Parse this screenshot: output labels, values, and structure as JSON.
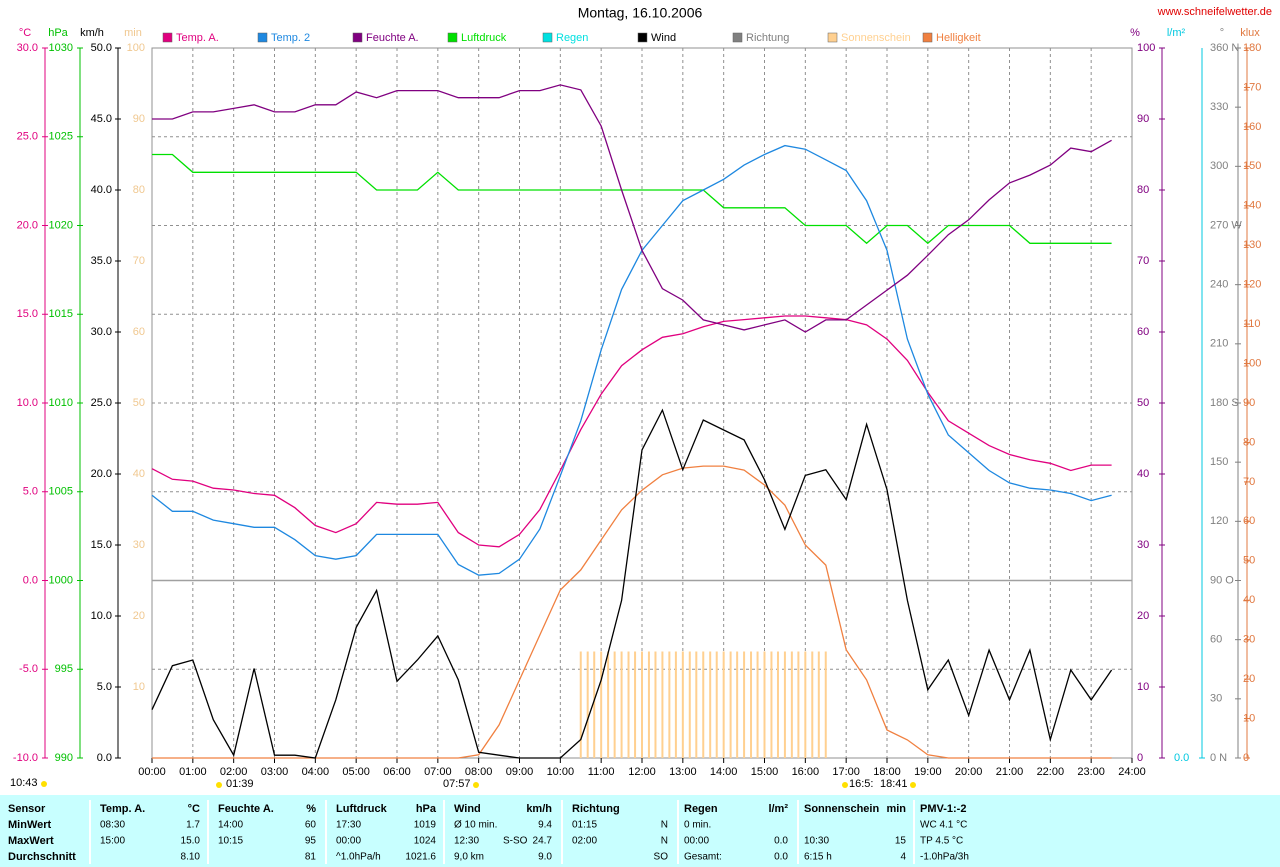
{
  "chart_data": {
    "type": "line",
    "title": "Montag, 16.10.2006",
    "source": "www.schneifelwetter.de",
    "x": [
      0,
      0.5,
      1,
      1.5,
      2,
      2.5,
      3,
      3.5,
      4,
      4.5,
      5,
      5.5,
      6,
      6.5,
      7,
      7.5,
      8,
      8.5,
      9,
      9.5,
      10,
      10.5,
      11,
      11.5,
      12,
      12.5,
      13,
      13.5,
      14,
      14.5,
      15,
      15.5,
      16,
      16.5,
      17,
      17.5,
      18,
      18.5,
      19,
      19.5,
      20,
      20.5,
      21,
      21.5,
      22,
      22.5,
      23,
      23.5
    ],
    "xlim": [
      0,
      24
    ],
    "xticks": [
      {
        "value": 0,
        "label": "00:00"
      },
      {
        "value": 1,
        "label": "01:00"
      },
      {
        "value": 2,
        "label": "02:00"
      },
      {
        "value": 3,
        "label": "03:00"
      },
      {
        "value": 4,
        "label": "04:00"
      },
      {
        "value": 5,
        "label": "05:00"
      },
      {
        "value": 6,
        "label": "06:00"
      },
      {
        "value": 7,
        "label": "07:00"
      },
      {
        "value": 8,
        "label": "08:00"
      },
      {
        "value": 9,
        "label": "09:00"
      },
      {
        "value": 10,
        "label": "10:00"
      },
      {
        "value": 11,
        "label": "11:00"
      },
      {
        "value": 12,
        "label": "12:00"
      },
      {
        "value": 13,
        "label": "13:00"
      },
      {
        "value": 14,
        "label": "14:00"
      },
      {
        "value": 15,
        "label": "15:00"
      },
      {
        "value": 16,
        "label": "16:00"
      },
      {
        "value": 17,
        "label": "17:00"
      },
      {
        "value": 18,
        "label": "18:00"
      },
      {
        "value": 19,
        "label": "19:00"
      },
      {
        "value": 20,
        "label": "20:00"
      },
      {
        "value": 21,
        "label": "21:00"
      },
      {
        "value": 22,
        "label": "22:00"
      },
      {
        "value": 23,
        "label": "23:00"
      },
      {
        "value": 24,
        "label": "24:00"
      }
    ],
    "grid": true,
    "axes": [
      {
        "label": "°C",
        "color": "#e0007f",
        "lim": [
          -10,
          30
        ],
        "ticks": [
          {
            "value": -10,
            "label": "-10.0"
          },
          {
            "value": -5,
            "label": "-5.0"
          },
          {
            "value": 0,
            "label": "0.0"
          },
          {
            "value": 5,
            "label": "5.0"
          },
          {
            "value": 10,
            "label": "10.0"
          },
          {
            "value": 15,
            "label": "15.0"
          },
          {
            "value": 20,
            "label": "20.0"
          },
          {
            "value": 25,
            "label": "25.0"
          },
          {
            "value": 30,
            "label": "30.0"
          }
        ]
      },
      {
        "label": "hPa",
        "color": "#00c000",
        "lim": [
          990,
          1030
        ],
        "ticks": [
          990,
          995,
          1000,
          1005,
          1010,
          1015,
          1020,
          1025,
          1030
        ]
      },
      {
        "label": "km/h",
        "color": "#000000",
        "lim": [
          0,
          50
        ],
        "ticks": [
          {
            "value": 0,
            "label": "0.0"
          },
          {
            "value": 5,
            "label": "5.0"
          },
          {
            "value": 10,
            "label": "10.0"
          },
          {
            "value": 15,
            "label": "15.0"
          },
          {
            "value": 20,
            "label": "20.0"
          },
          {
            "value": 25,
            "label": "25.0"
          },
          {
            "value": 30,
            "label": "30.0"
          },
          {
            "value": 35,
            "label": "35.0"
          },
          {
            "value": 40,
            "label": "40.0"
          },
          {
            "value": 45,
            "label": "45.0"
          },
          {
            "value": 50,
            "label": "50.0"
          }
        ]
      },
      {
        "label": "min",
        "color": "#f0c890",
        "lim": [
          0,
          100
        ],
        "ticks": [
          10,
          20,
          30,
          40,
          50,
          60,
          70,
          80,
          90,
          100
        ]
      },
      {
        "label": "%",
        "color": "#800080",
        "lim": [
          0,
          100
        ],
        "ticks": [
          0,
          10,
          20,
          30,
          40,
          50,
          60,
          70,
          80,
          90,
          100
        ]
      },
      {
        "label": "l/m²",
        "color": "#00c8e0",
        "ticks": [
          {
            "value": 0,
            "label": "0.0"
          }
        ]
      },
      {
        "label": "°",
        "color": "#808080",
        "lim": [
          0,
          360
        ],
        "ticks": [
          {
            "value": 0,
            "label": "0 N"
          },
          30,
          60,
          {
            "value": 90,
            "label": "90 O"
          },
          120,
          150,
          {
            "value": 180,
            "label": "180 S"
          },
          210,
          240,
          {
            "value": 270,
            "label": "270 W"
          },
          300,
          330,
          {
            "value": 360,
            "label": "360 N"
          }
        ]
      },
      {
        "label": "klux",
        "color": "#e07840",
        "lim": [
          0,
          180
        ],
        "ticks": [
          0,
          10,
          20,
          30,
          40,
          50,
          60,
          70,
          80,
          90,
          100,
          110,
          120,
          130,
          140,
          150,
          160,
          170,
          180
        ]
      }
    ],
    "series": [
      {
        "name": "Temp. A.",
        "color": "#e0007f",
        "axis": 0,
        "values": [
          6.3,
          5.7,
          5.6,
          5.2,
          5.1,
          4.9,
          4.8,
          4.1,
          3.1,
          2.7,
          3.2,
          4.4,
          4.3,
          4.3,
          4.4,
          2.7,
          2.0,
          1.9,
          2.6,
          4.0,
          6.2,
          8.5,
          10.5,
          12.1,
          13.0,
          13.7,
          13.9,
          14.3,
          14.6,
          14.7,
          14.8,
          14.9,
          14.9,
          14.8,
          14.7,
          14.4,
          13.6,
          12.4,
          10.6,
          9.0,
          8.3,
          7.6,
          7.1,
          6.8,
          6.6,
          6.2,
          6.5,
          6.5
        ]
      },
      {
        "name": "Temp. 2",
        "color": "#1e88e0",
        "axis": 0,
        "values": [
          4.8,
          3.9,
          3.9,
          3.4,
          3.2,
          3.0,
          3.0,
          2.3,
          1.4,
          1.2,
          1.4,
          2.6,
          2.6,
          2.6,
          2.6,
          0.9,
          0.3,
          0.4,
          1.2,
          2.9,
          5.9,
          9.0,
          13.0,
          16.4,
          18.6,
          20.0,
          21.4,
          22.0,
          22.6,
          23.4,
          24.0,
          24.5,
          24.3,
          23.7,
          23.1,
          21.4,
          18.6,
          13.6,
          10.5,
          8.2,
          7.2,
          6.2,
          5.5,
          5.2,
          5.1,
          4.9,
          4.5,
          4.8
        ]
      },
      {
        "name": "Feuchte A.",
        "color": "#800080",
        "axis": 4,
        "values": [
          90.0,
          90.0,
          91.0,
          91.0,
          91.5,
          92.0,
          91.0,
          91.0,
          92.0,
          92.0,
          93.8,
          93.0,
          94.0,
          94.0,
          94.0,
          93.0,
          93.0,
          93.0,
          94.0,
          94.0,
          94.8,
          94.1,
          89.0,
          80.0,
          71.5,
          66.1,
          64.5,
          61.7,
          61.0,
          60.3,
          61.0,
          61.7,
          60.0,
          61.7,
          61.7,
          63.8,
          65.9,
          68.0,
          70.8,
          73.7,
          75.8,
          78.6,
          81.0,
          82.1,
          83.5,
          85.9,
          85.4,
          87.0
        ]
      },
      {
        "name": "Luftdruck",
        "color": "#00e000",
        "axis": 1,
        "values": [
          1024,
          1024,
          1023,
          1023,
          1023,
          1023,
          1023,
          1023,
          1023,
          1023,
          1023,
          1022,
          1022,
          1022,
          1023,
          1022,
          1022,
          1022,
          1022,
          1022,
          1022,
          1022,
          1022,
          1022,
          1022,
          1022,
          1022,
          1022,
          1021,
          1021,
          1021,
          1021,
          1020,
          1020,
          1020,
          1019,
          1020,
          1020,
          1019,
          1020,
          1020,
          1020,
          1020,
          1019,
          1019,
          1019,
          1019,
          1019
        ]
      },
      {
        "name": "Regen",
        "color": "#00e0e0"
      },
      {
        "name": "Wind",
        "color": "#000000",
        "axis": 2,
        "values": [
          3.4,
          6.5,
          6.9,
          2.7,
          0.2,
          6.3,
          0.2,
          0.2,
          0.0,
          4.1,
          9.2,
          11.8,
          5.4,
          6.9,
          8.6,
          5.5,
          0.4,
          0.2,
          0.0,
          0.0,
          0.0,
          1.3,
          5.5,
          11.1,
          21.7,
          24.5,
          20.3,
          23.8,
          23.1,
          22.4,
          19.6,
          16.1,
          19.9,
          20.3,
          18.2,
          23.5,
          18.9,
          11.1,
          4.8,
          6.9,
          3.0,
          7.6,
          4.1,
          7.6,
          1.3,
          6.2,
          4.1,
          6.2
        ]
      },
      {
        "name": "Richtung",
        "color": "#808080"
      },
      {
        "name": "Sonnenschein",
        "color": "#ffd090",
        "axis": 3,
        "style": "bars",
        "x": [
          10.5,
          10.67,
          10.83,
          11,
          11.17,
          11.33,
          11.5,
          11.67,
          11.83,
          12,
          12.17,
          12.33,
          12.5,
          12.67,
          12.83,
          13,
          13.17,
          13.33,
          13.5,
          13.67,
          13.83,
          14,
          14.17,
          14.33,
          14.5,
          14.67,
          14.83,
          15,
          15.17,
          15.33,
          15.5,
          15.67,
          15.83,
          16,
          16.17,
          16.33,
          16.5
        ],
        "values": [
          15,
          15,
          15,
          15,
          15,
          15,
          15,
          15,
          15,
          15,
          15,
          15,
          15,
          15,
          15,
          15,
          15,
          15,
          15,
          15,
          15,
          15,
          15,
          15,
          15,
          15,
          15,
          15,
          15,
          15,
          15,
          15,
          15,
          15,
          15,
          15,
          15
        ]
      },
      {
        "name": "Helligkeit",
        "color": "#f08040",
        "axis": 7,
        "values": [
          0,
          0,
          0,
          0,
          0,
          0,
          0,
          0,
          0,
          0,
          0,
          0,
          0,
          0,
          0,
          0,
          0.8,
          8.4,
          19.8,
          31.2,
          42.6,
          47.7,
          55.3,
          62.9,
          67.9,
          71.8,
          73.5,
          74.0,
          74.0,
          73.0,
          69.2,
          64.1,
          54.0,
          48.9,
          27.4,
          19.8,
          7.1,
          4.6,
          0.8,
          0,
          0,
          0,
          0,
          0,
          0,
          0,
          0,
          0
        ]
      }
    ],
    "annotations": [
      "10:43",
      "01:39",
      "07:57",
      "16:5:",
      "18:41"
    ],
    "table": [
      [
        "Sensor",
        "Temp. A.",
        "°C",
        "Feuchte A.",
        "%",
        "Luftdruck",
        "hPa",
        "Wind",
        null,
        "km/h",
        "Richtung",
        null,
        "Regen",
        "l/m²",
        "Sonnenschein",
        "min",
        "PMV-1:-2"
      ],
      [
        "MinWert",
        "08:30",
        "1.7",
        "14:00",
        "60",
        "17:30",
        "1019",
        "Ø 10 min.",
        null,
        "9.4",
        "01:15",
        "N",
        "0 min.",
        null,
        null,
        null,
        "WC 4.1 °C"
      ],
      [
        "MaxWert",
        "15:00",
        "15.0",
        "10:15",
        "95",
        "00:00",
        "1024",
        "12:30",
        "S-SO",
        "24.7",
        "02:00",
        "N",
        "00:00",
        "0.0",
        "10:30",
        "15",
        "TP 4.5 °C"
      ],
      [
        "Durchschnitt",
        null,
        "8.10",
        null,
        "81",
        "^1.0hPa/h",
        "1021.6",
        "9,0 km",
        null,
        "9.0",
        null,
        "SO",
        "Gesamt:",
        "0.0",
        "6:15 h",
        "4",
        "-1.0hPa/3h"
      ]
    ]
  }
}
